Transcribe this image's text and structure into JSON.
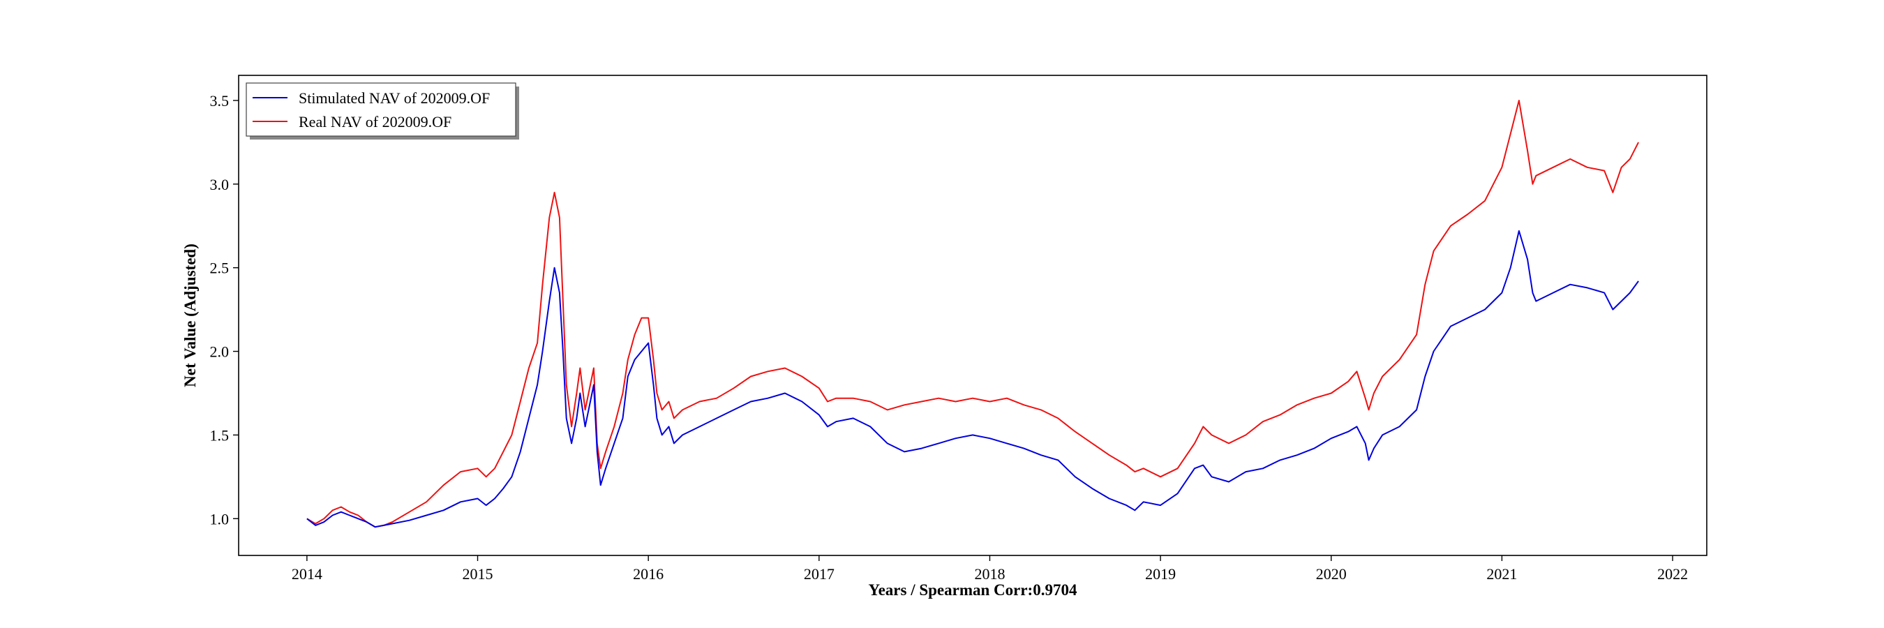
{
  "chart_data": {
    "type": "line",
    "title": "",
    "xlabel": "Years / Spearman Corr:0.9704",
    "ylabel": "Net Value (Adjusted)",
    "xlim": [
      2013.6,
      2022.2
    ],
    "ylim": [
      0.78,
      3.65
    ],
    "x_ticks": [
      2014,
      2015,
      2016,
      2017,
      2018,
      2019,
      2020,
      2021,
      2022
    ],
    "x_tick_labels": [
      "2014",
      "2015",
      "2016",
      "2017",
      "2018",
      "2019",
      "2020",
      "2021",
      "2022"
    ],
    "y_ticks": [
      1.0,
      1.5,
      2.0,
      2.5,
      3.0,
      3.5
    ],
    "y_tick_labels": [
      "1.0",
      "1.5",
      "2.0",
      "2.5",
      "3.0",
      "3.5"
    ],
    "grid": false,
    "legend_position": "top-left",
    "series": [
      {
        "name": "Stimulated NAV of 202009.OF",
        "color": "#0000dd",
        "points": [
          [
            2014.0,
            1.0
          ],
          [
            2014.05,
            0.96
          ],
          [
            2014.1,
            0.98
          ],
          [
            2014.15,
            1.02
          ],
          [
            2014.2,
            1.04
          ],
          [
            2014.25,
            1.02
          ],
          [
            2014.3,
            1.0
          ],
          [
            2014.35,
            0.98
          ],
          [
            2014.4,
            0.95
          ],
          [
            2014.45,
            0.96
          ],
          [
            2014.5,
            0.97
          ],
          [
            2014.6,
            0.99
          ],
          [
            2014.7,
            1.02
          ],
          [
            2014.8,
            1.05
          ],
          [
            2014.9,
            1.1
          ],
          [
            2015.0,
            1.12
          ],
          [
            2015.05,
            1.08
          ],
          [
            2015.1,
            1.12
          ],
          [
            2015.15,
            1.18
          ],
          [
            2015.2,
            1.25
          ],
          [
            2015.25,
            1.4
          ],
          [
            2015.3,
            1.6
          ],
          [
            2015.35,
            1.8
          ],
          [
            2015.38,
            2.0
          ],
          [
            2015.42,
            2.3
          ],
          [
            2015.45,
            2.5
          ],
          [
            2015.48,
            2.35
          ],
          [
            2015.5,
            2.0
          ],
          [
            2015.52,
            1.6
          ],
          [
            2015.55,
            1.45
          ],
          [
            2015.58,
            1.6
          ],
          [
            2015.6,
            1.75
          ],
          [
            2015.63,
            1.55
          ],
          [
            2015.66,
            1.7
          ],
          [
            2015.68,
            1.8
          ],
          [
            2015.7,
            1.4
          ],
          [
            2015.72,
            1.2
          ],
          [
            2015.75,
            1.3
          ],
          [
            2015.8,
            1.45
          ],
          [
            2015.85,
            1.6
          ],
          [
            2015.88,
            1.85
          ],
          [
            2015.92,
            1.95
          ],
          [
            2015.96,
            2.0
          ],
          [
            2016.0,
            2.05
          ],
          [
            2016.03,
            1.8
          ],
          [
            2016.05,
            1.6
          ],
          [
            2016.08,
            1.5
          ],
          [
            2016.12,
            1.55
          ],
          [
            2016.15,
            1.45
          ],
          [
            2016.2,
            1.5
          ],
          [
            2016.3,
            1.55
          ],
          [
            2016.4,
            1.6
          ],
          [
            2016.5,
            1.65
          ],
          [
            2016.6,
            1.7
          ],
          [
            2016.7,
            1.72
          ],
          [
            2016.8,
            1.75
          ],
          [
            2016.9,
            1.7
          ],
          [
            2017.0,
            1.62
          ],
          [
            2017.05,
            1.55
          ],
          [
            2017.1,
            1.58
          ],
          [
            2017.2,
            1.6
          ],
          [
            2017.3,
            1.55
          ],
          [
            2017.4,
            1.45
          ],
          [
            2017.5,
            1.4
          ],
          [
            2017.6,
            1.42
          ],
          [
            2017.7,
            1.45
          ],
          [
            2017.8,
            1.48
          ],
          [
            2017.9,
            1.5
          ],
          [
            2018.0,
            1.48
          ],
          [
            2018.1,
            1.45
          ],
          [
            2018.2,
            1.42
          ],
          [
            2018.3,
            1.38
          ],
          [
            2018.4,
            1.35
          ],
          [
            2018.5,
            1.25
          ],
          [
            2018.6,
            1.18
          ],
          [
            2018.7,
            1.12
          ],
          [
            2018.8,
            1.08
          ],
          [
            2018.85,
            1.05
          ],
          [
            2018.9,
            1.1
          ],
          [
            2019.0,
            1.08
          ],
          [
            2019.1,
            1.15
          ],
          [
            2019.2,
            1.3
          ],
          [
            2019.25,
            1.32
          ],
          [
            2019.3,
            1.25
          ],
          [
            2019.4,
            1.22
          ],
          [
            2019.5,
            1.28
          ],
          [
            2019.6,
            1.3
          ],
          [
            2019.7,
            1.35
          ],
          [
            2019.8,
            1.38
          ],
          [
            2019.9,
            1.42
          ],
          [
            2020.0,
            1.48
          ],
          [
            2020.1,
            1.52
          ],
          [
            2020.15,
            1.55
          ],
          [
            2020.2,
            1.45
          ],
          [
            2020.22,
            1.35
          ],
          [
            2020.25,
            1.42
          ],
          [
            2020.3,
            1.5
          ],
          [
            2020.4,
            1.55
          ],
          [
            2020.5,
            1.65
          ],
          [
            2020.55,
            1.85
          ],
          [
            2020.6,
            2.0
          ],
          [
            2020.7,
            2.15
          ],
          [
            2020.8,
            2.2
          ],
          [
            2020.9,
            2.25
          ],
          [
            2021.0,
            2.35
          ],
          [
            2021.05,
            2.5
          ],
          [
            2021.1,
            2.72
          ],
          [
            2021.15,
            2.55
          ],
          [
            2021.18,
            2.35
          ],
          [
            2021.2,
            2.3
          ],
          [
            2021.3,
            2.35
          ],
          [
            2021.4,
            2.4
          ],
          [
            2021.5,
            2.38
          ],
          [
            2021.6,
            2.35
          ],
          [
            2021.65,
            2.25
          ],
          [
            2021.7,
            2.3
          ],
          [
            2021.75,
            2.35
          ],
          [
            2021.8,
            2.42
          ]
        ]
      },
      {
        "name": "Real NAV of 202009.OF",
        "color": "#ee1111",
        "points": [
          [
            2014.0,
            1.0
          ],
          [
            2014.05,
            0.97
          ],
          [
            2014.1,
            1.0
          ],
          [
            2014.15,
            1.05
          ],
          [
            2014.2,
            1.07
          ],
          [
            2014.25,
            1.04
          ],
          [
            2014.3,
            1.02
          ],
          [
            2014.35,
            0.98
          ],
          [
            2014.4,
            0.95
          ],
          [
            2014.45,
            0.96
          ],
          [
            2014.5,
            0.98
          ],
          [
            2014.6,
            1.04
          ],
          [
            2014.7,
            1.1
          ],
          [
            2014.8,
            1.2
          ],
          [
            2014.9,
            1.28
          ],
          [
            2015.0,
            1.3
          ],
          [
            2015.05,
            1.25
          ],
          [
            2015.1,
            1.3
          ],
          [
            2015.15,
            1.4
          ],
          [
            2015.2,
            1.5
          ],
          [
            2015.25,
            1.7
          ],
          [
            2015.3,
            1.9
          ],
          [
            2015.35,
            2.05
          ],
          [
            2015.38,
            2.4
          ],
          [
            2015.42,
            2.8
          ],
          [
            2015.45,
            2.95
          ],
          [
            2015.48,
            2.8
          ],
          [
            2015.5,
            2.3
          ],
          [
            2015.52,
            1.8
          ],
          [
            2015.55,
            1.55
          ],
          [
            2015.58,
            1.75
          ],
          [
            2015.6,
            1.9
          ],
          [
            2015.63,
            1.65
          ],
          [
            2015.66,
            1.8
          ],
          [
            2015.68,
            1.9
          ],
          [
            2015.7,
            1.45
          ],
          [
            2015.72,
            1.3
          ],
          [
            2015.75,
            1.4
          ],
          [
            2015.8,
            1.55
          ],
          [
            2015.85,
            1.75
          ],
          [
            2015.88,
            1.95
          ],
          [
            2015.92,
            2.1
          ],
          [
            2015.96,
            2.2
          ],
          [
            2016.0,
            2.2
          ],
          [
            2016.03,
            1.95
          ],
          [
            2016.05,
            1.75
          ],
          [
            2016.08,
            1.65
          ],
          [
            2016.12,
            1.7
          ],
          [
            2016.15,
            1.6
          ],
          [
            2016.2,
            1.65
          ],
          [
            2016.3,
            1.7
          ],
          [
            2016.4,
            1.72
          ],
          [
            2016.5,
            1.78
          ],
          [
            2016.6,
            1.85
          ],
          [
            2016.7,
            1.88
          ],
          [
            2016.8,
            1.9
          ],
          [
            2016.9,
            1.85
          ],
          [
            2017.0,
            1.78
          ],
          [
            2017.05,
            1.7
          ],
          [
            2017.1,
            1.72
          ],
          [
            2017.2,
            1.72
          ],
          [
            2017.3,
            1.7
          ],
          [
            2017.4,
            1.65
          ],
          [
            2017.5,
            1.68
          ],
          [
            2017.6,
            1.7
          ],
          [
            2017.7,
            1.72
          ],
          [
            2017.8,
            1.7
          ],
          [
            2017.9,
            1.72
          ],
          [
            2018.0,
            1.7
          ],
          [
            2018.1,
            1.72
          ],
          [
            2018.2,
            1.68
          ],
          [
            2018.3,
            1.65
          ],
          [
            2018.4,
            1.6
          ],
          [
            2018.5,
            1.52
          ],
          [
            2018.6,
            1.45
          ],
          [
            2018.7,
            1.38
          ],
          [
            2018.8,
            1.32
          ],
          [
            2018.85,
            1.28
          ],
          [
            2018.9,
            1.3
          ],
          [
            2019.0,
            1.25
          ],
          [
            2019.1,
            1.3
          ],
          [
            2019.2,
            1.45
          ],
          [
            2019.25,
            1.55
          ],
          [
            2019.3,
            1.5
          ],
          [
            2019.4,
            1.45
          ],
          [
            2019.5,
            1.5
          ],
          [
            2019.6,
            1.58
          ],
          [
            2019.7,
            1.62
          ],
          [
            2019.8,
            1.68
          ],
          [
            2019.9,
            1.72
          ],
          [
            2020.0,
            1.75
          ],
          [
            2020.1,
            1.82
          ],
          [
            2020.15,
            1.88
          ],
          [
            2020.2,
            1.72
          ],
          [
            2020.22,
            1.65
          ],
          [
            2020.25,
            1.75
          ],
          [
            2020.3,
            1.85
          ],
          [
            2020.4,
            1.95
          ],
          [
            2020.5,
            2.1
          ],
          [
            2020.55,
            2.4
          ],
          [
            2020.6,
            2.6
          ],
          [
            2020.7,
            2.75
          ],
          [
            2020.8,
            2.82
          ],
          [
            2020.9,
            2.9
          ],
          [
            2021.0,
            3.1
          ],
          [
            2021.05,
            3.3
          ],
          [
            2021.1,
            3.5
          ],
          [
            2021.15,
            3.2
          ],
          [
            2021.18,
            3.0
          ],
          [
            2021.2,
            3.05
          ],
          [
            2021.3,
            3.1
          ],
          [
            2021.4,
            3.15
          ],
          [
            2021.5,
            3.1
          ],
          [
            2021.6,
            3.08
          ],
          [
            2021.65,
            2.95
          ],
          [
            2021.7,
            3.1
          ],
          [
            2021.75,
            3.15
          ],
          [
            2021.8,
            3.25
          ]
        ]
      }
    ]
  }
}
